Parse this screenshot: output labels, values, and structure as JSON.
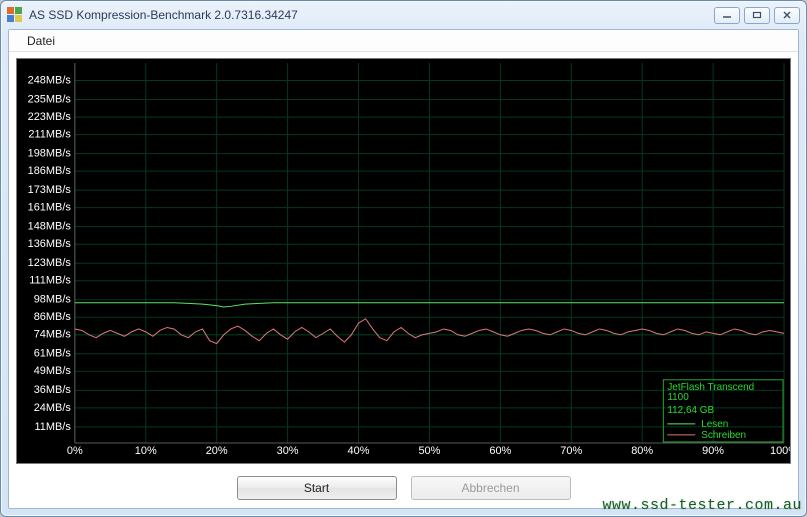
{
  "window": {
    "title": "AS SSD Kompression-Benchmark 2.0.7316.34247"
  },
  "menubar": {
    "file_label": "Datei"
  },
  "buttons": {
    "start_label": "Start",
    "cancel_label": "Abbrechen"
  },
  "watermark": "www.ssd-tester.com.au",
  "chart": {
    "type": "line",
    "background_color": "#000000",
    "grid_color": "#003a1f",
    "axis_color": "#5a5a5a",
    "label_color": "#ffffff",
    "label_fontsize": 11,
    "x_axis": {
      "unit": "%",
      "min": 0,
      "max": 100,
      "tick_step": 10,
      "ticks": [
        0,
        10,
        20,
        30,
        40,
        50,
        60,
        70,
        80,
        90,
        100
      ]
    },
    "y_axis": {
      "unit": "MB/s",
      "min": 0,
      "max": 260,
      "tick_values": [
        11,
        24,
        36,
        49,
        61,
        74,
        86,
        98,
        111,
        123,
        136,
        148,
        161,
        173,
        186,
        198,
        211,
        223,
        235,
        248
      ]
    },
    "legend": {
      "border_color": "#2aa52a",
      "text_color": "#2cd82c",
      "device_line1": "JetFlash Transcend",
      "device_line2": "1100",
      "capacity": "112,64 GB",
      "read_label": "Lesen",
      "write_label": "Schreiben"
    },
    "series": {
      "read": {
        "label": "Lesen",
        "color": "#5ee65e",
        "line_width": 1,
        "points": [
          [
            0,
            96
          ],
          [
            2,
            96
          ],
          [
            4,
            96
          ],
          [
            6,
            96
          ],
          [
            8,
            96
          ],
          [
            10,
            96
          ],
          [
            12,
            96
          ],
          [
            14,
            96
          ],
          [
            16,
            95.5
          ],
          [
            18,
            95
          ],
          [
            20,
            94
          ],
          [
            21,
            93
          ],
          [
            22,
            93.5
          ],
          [
            24,
            95
          ],
          [
            26,
            95.5
          ],
          [
            28,
            96
          ],
          [
            30,
            96
          ],
          [
            32,
            96
          ],
          [
            34,
            96
          ],
          [
            36,
            96
          ],
          [
            38,
            96
          ],
          [
            40,
            96
          ],
          [
            42,
            96
          ],
          [
            44,
            96
          ],
          [
            46,
            96
          ],
          [
            48,
            96
          ],
          [
            50,
            96
          ],
          [
            52,
            96
          ],
          [
            54,
            96
          ],
          [
            56,
            96
          ],
          [
            58,
            96
          ],
          [
            60,
            96
          ],
          [
            62,
            96
          ],
          [
            64,
            96
          ],
          [
            66,
            96
          ],
          [
            68,
            96
          ],
          [
            70,
            96
          ],
          [
            72,
            96
          ],
          [
            74,
            96
          ],
          [
            76,
            96
          ],
          [
            78,
            96
          ],
          [
            80,
            96
          ],
          [
            82,
            96
          ],
          [
            84,
            96
          ],
          [
            86,
            96
          ],
          [
            88,
            96
          ],
          [
            90,
            96
          ],
          [
            92,
            96
          ],
          [
            94,
            96
          ],
          [
            96,
            96
          ],
          [
            98,
            96
          ],
          [
            100,
            96
          ]
        ]
      },
      "write": {
        "label": "Schreiben",
        "color": "#e07878",
        "line_width": 1,
        "points": [
          [
            0,
            78
          ],
          [
            1,
            77
          ],
          [
            2,
            74
          ],
          [
            3,
            72
          ],
          [
            4,
            75
          ],
          [
            5,
            77
          ],
          [
            6,
            75
          ],
          [
            7,
            73
          ],
          [
            8,
            76
          ],
          [
            9,
            78
          ],
          [
            10,
            76
          ],
          [
            11,
            73
          ],
          [
            12,
            77
          ],
          [
            13,
            79
          ],
          [
            14,
            78
          ],
          [
            15,
            74
          ],
          [
            16,
            72
          ],
          [
            17,
            76
          ],
          [
            18,
            78
          ],
          [
            19,
            70
          ],
          [
            20,
            68
          ],
          [
            21,
            74
          ],
          [
            22,
            78
          ],
          [
            23,
            80
          ],
          [
            24,
            77
          ],
          [
            25,
            73
          ],
          [
            26,
            70
          ],
          [
            27,
            75
          ],
          [
            28,
            78
          ],
          [
            29,
            74
          ],
          [
            30,
            71
          ],
          [
            31,
            76
          ],
          [
            32,
            79
          ],
          [
            33,
            76
          ],
          [
            34,
            72
          ],
          [
            35,
            75
          ],
          [
            36,
            78
          ],
          [
            37,
            73
          ],
          [
            38,
            69
          ],
          [
            39,
            74
          ],
          [
            40,
            82
          ],
          [
            41,
            85
          ],
          [
            42,
            78
          ],
          [
            43,
            72
          ],
          [
            44,
            70
          ],
          [
            45,
            76
          ],
          [
            46,
            79
          ],
          [
            47,
            75
          ],
          [
            48,
            72
          ],
          [
            49,
            74
          ],
          [
            50,
            75
          ],
          [
            51,
            76
          ],
          [
            52,
            78
          ],
          [
            53,
            77
          ],
          [
            54,
            74
          ],
          [
            55,
            73
          ],
          [
            56,
            75
          ],
          [
            57,
            77
          ],
          [
            58,
            78
          ],
          [
            59,
            76
          ],
          [
            60,
            74
          ],
          [
            61,
            73
          ],
          [
            62,
            75
          ],
          [
            63,
            77
          ],
          [
            64,
            78
          ],
          [
            65,
            77
          ],
          [
            66,
            75
          ],
          [
            67,
            74
          ],
          [
            68,
            76
          ],
          [
            69,
            78
          ],
          [
            70,
            77
          ],
          [
            71,
            75
          ],
          [
            72,
            74
          ],
          [
            73,
            76
          ],
          [
            74,
            78
          ],
          [
            75,
            77
          ],
          [
            76,
            75
          ],
          [
            77,
            74
          ],
          [
            78,
            76
          ],
          [
            79,
            77
          ],
          [
            80,
            78
          ],
          [
            81,
            77
          ],
          [
            82,
            75
          ],
          [
            83,
            74
          ],
          [
            84,
            76
          ],
          [
            85,
            78
          ],
          [
            86,
            77
          ],
          [
            87,
            75
          ],
          [
            88,
            74
          ],
          [
            89,
            76
          ],
          [
            90,
            75
          ],
          [
            91,
            74
          ],
          [
            92,
            76
          ],
          [
            93,
            78
          ],
          [
            94,
            77
          ],
          [
            95,
            75
          ],
          [
            96,
            74
          ],
          [
            97,
            76
          ],
          [
            98,
            77
          ],
          [
            99,
            76
          ],
          [
            100,
            75
          ]
        ]
      }
    }
  }
}
